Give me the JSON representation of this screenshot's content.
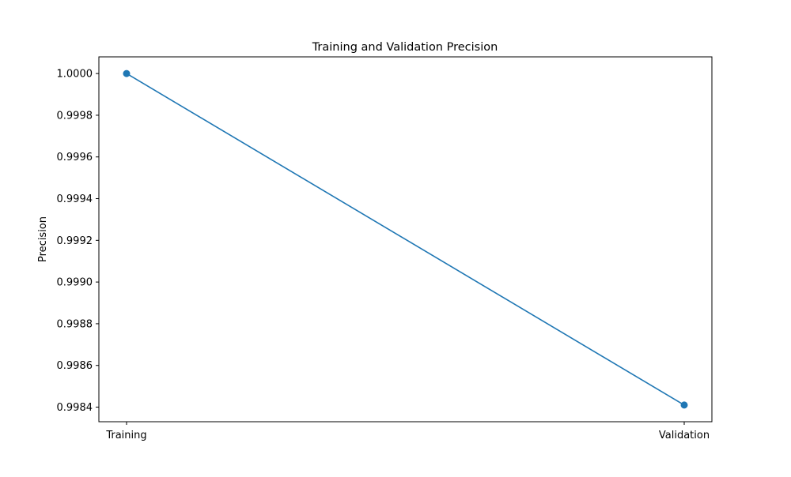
{
  "chart_data": {
    "type": "line",
    "title": "Training and Validation Precision",
    "xlabel": "",
    "ylabel": "Precision",
    "categories": [
      "Training",
      "Validation"
    ],
    "series": [
      {
        "values": [
          1.0,
          0.99841
        ],
        "color": "#1f77b4",
        "marker": "circle"
      }
    ],
    "ylim": [
      0.99833,
      1.00008
    ],
    "yticks": [
      {
        "value": 0.9984,
        "label": "0.9984"
      },
      {
        "value": 0.9986,
        "label": "0.9986"
      },
      {
        "value": 0.9988,
        "label": "0.9988"
      },
      {
        "value": 0.999,
        "label": "0.9990"
      },
      {
        "value": 0.9992,
        "label": "0.9992"
      },
      {
        "value": 0.9994,
        "label": "0.9994"
      },
      {
        "value": 0.9996,
        "label": "0.9996"
      },
      {
        "value": 0.9998,
        "label": "0.9998"
      },
      {
        "value": 1.0,
        "label": "1.0000"
      }
    ],
    "grid": false,
    "legend": "none"
  }
}
